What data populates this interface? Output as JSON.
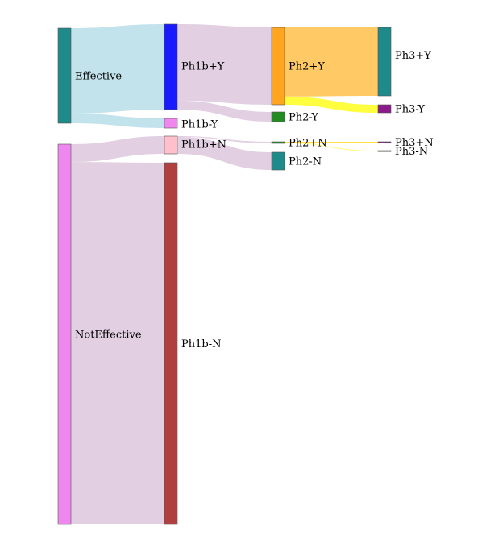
{
  "nodes": [
    {
      "id": "effective",
      "label": "Effective",
      "color": "#1e8a8a"
    },
    {
      "id": "noteffective",
      "label": "NotEffective",
      "color": "#ee88ee"
    },
    {
      "id": "ph1b_pos_y",
      "label": "Ph1b+Y",
      "color": "#1a1aff"
    },
    {
      "id": "ph1b_neg_y",
      "label": "Ph1b-Y",
      "color": "#ee88ee"
    },
    {
      "id": "ph1b_pos_n",
      "label": "Ph1b+N",
      "color": "#ffc0cb"
    },
    {
      "id": "ph1b_neg_n",
      "label": "Ph1b-N",
      "color": "#b04040"
    },
    {
      "id": "ph2_pos_y",
      "label": "Ph2+Y",
      "color": "#ffa520"
    },
    {
      "id": "ph2_neg_y",
      "label": "Ph2-Y",
      "color": "#228b22"
    },
    {
      "id": "ph2_pos_n",
      "label": "Ph2+N",
      "color": "#228b22"
    },
    {
      "id": "ph2_neg_n",
      "label": "Ph2-N",
      "color": "#1e8a8a"
    },
    {
      "id": "ph3_pos_y",
      "label": "Ph3+Y",
      "color": "#1e8a8a"
    },
    {
      "id": "ph3_neg_y",
      "label": "Ph3-Y",
      "color": "#8b1a8b"
    },
    {
      "id": "ph3_pos_n",
      "label": "Ph3+N",
      "color": "#8b1a8b"
    },
    {
      "id": "ph3_neg_n",
      "label": "Ph3-N",
      "color": "#1e8a8a"
    }
  ],
  "links": [
    {
      "source": "effective",
      "target": "ph1b_pos_y",
      "value": 105,
      "color": "#add8e6"
    },
    {
      "source": "effective",
      "target": "ph1b_neg_y",
      "value": 12,
      "color": "#add8e6"
    },
    {
      "source": "noteffective",
      "target": "ph1b_pos_n",
      "value": 22,
      "color": "#d8bfd8"
    },
    {
      "source": "noteffective",
      "target": "ph1b_neg_n",
      "value": 448,
      "color": "#d8bfd8"
    },
    {
      "source": "ph1b_pos_y",
      "target": "ph2_pos_y",
      "value": 94,
      "color": "#d8bfd8"
    },
    {
      "source": "ph1b_pos_y",
      "target": "ph2_neg_y",
      "value": 11,
      "color": "#d8bfd8"
    },
    {
      "source": "ph1b_pos_n",
      "target": "ph2_pos_n",
      "value": 1,
      "color": "#d8bfd8"
    },
    {
      "source": "ph1b_pos_n",
      "target": "ph2_neg_n",
      "value": 21,
      "color": "#d8bfd8"
    },
    {
      "source": "ph2_pos_y",
      "target": "ph3_pos_y",
      "value": 84,
      "color": "#ffb732"
    },
    {
      "source": "ph2_pos_y",
      "target": "ph3_neg_y",
      "value": 10,
      "color": "#ffff00"
    },
    {
      "source": "ph2_pos_n",
      "target": "ph3_pos_n",
      "value": 0.5,
      "color": "#ffd700"
    },
    {
      "source": "ph2_pos_n",
      "target": "ph3_neg_n",
      "value": 0.5,
      "color": "#ffff66"
    }
  ]
}
